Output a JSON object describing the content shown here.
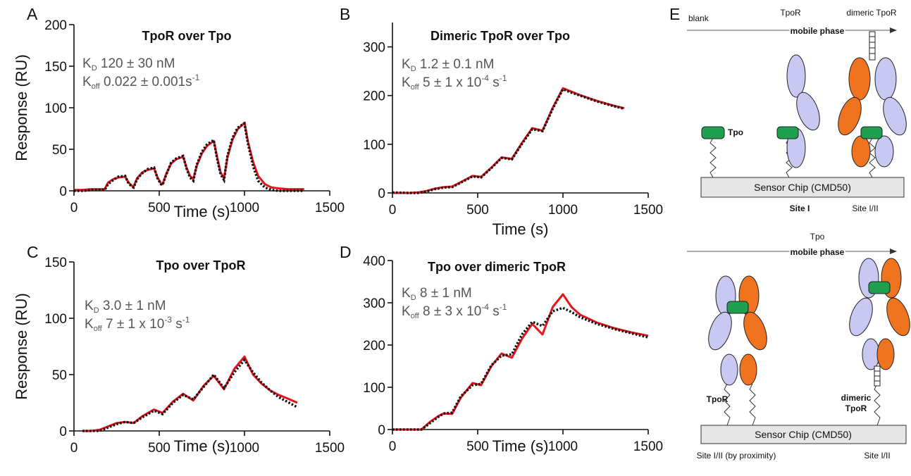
{
  "chart_data": [
    {
      "type": "line",
      "label": "A",
      "title": "TpoR over Tpo",
      "xlabel": "Time (s)",
      "ylabel": "Response (RU)",
      "annotations": [
        [
          {
            "text": "K"
          },
          {
            "sub": "D"
          },
          {
            "text": " 120 ± 30 nM"
          }
        ],
        [
          {
            "text": "K"
          },
          {
            "sub": "off"
          },
          {
            "text": " 0.022 ± 0.001s"
          },
          {
            "sup": "-1"
          }
        ]
      ],
      "x": [
        0,
        50,
        100,
        150,
        180,
        200,
        230,
        260,
        300,
        320,
        340,
        350,
        370,
        400,
        430,
        470,
        490,
        510,
        520,
        540,
        570,
        600,
        640,
        660,
        680,
        700,
        720,
        750,
        780,
        820,
        840,
        860,
        880,
        900,
        930,
        960,
        1000,
        1020,
        1050,
        1080,
        1120,
        1160,
        1200,
        1250,
        1300,
        1350
      ],
      "xlim": [
        0,
        1500
      ],
      "xticks": [
        0,
        500,
        1000,
        1500
      ],
      "ylim": [
        0,
        200
      ],
      "yticks": [
        0,
        50,
        100,
        150,
        200
      ],
      "series": [
        {
          "color": "#e8141c",
          "style": "solid",
          "values": [
            1,
            1,
            2,
            2,
            2,
            10,
            14,
            16,
            17,
            10,
            6,
            5,
            15,
            22,
            25,
            27,
            16,
            9,
            8,
            20,
            33,
            38,
            41,
            28,
            18,
            14,
            30,
            45,
            54,
            60,
            40,
            22,
            15,
            40,
            62,
            74,
            82,
            60,
            35,
            18,
            8,
            4,
            3,
            2,
            2,
            2
          ]
        },
        {
          "color": "#111111",
          "style": "dotted",
          "values": [
            0,
            0,
            1,
            1,
            1,
            8,
            13,
            17,
            18,
            9,
            5,
            4,
            14,
            21,
            26,
            28,
            15,
            8,
            7,
            19,
            34,
            39,
            42,
            27,
            16,
            12,
            31,
            47,
            56,
            61,
            38,
            20,
            13,
            42,
            64,
            76,
            81,
            57,
            30,
            12,
            4,
            1,
            0,
            0,
            0,
            0
          ]
        }
      ]
    },
    {
      "type": "line",
      "label": "B",
      "title": "Dimeric TpoR over Tpo",
      "xlabel": "Time (s)",
      "annotations": [
        [
          {
            "text": "K"
          },
          {
            "sub": "D"
          },
          {
            "text": " 1.2 ± 0.1 nM"
          }
        ],
        [
          {
            "text": "K"
          },
          {
            "sub": "off"
          },
          {
            "text": " 5 ± 1 x 10"
          },
          {
            "sup": "-4"
          },
          {
            "text": " s"
          },
          {
            "sup": "-1"
          }
        ]
      ],
      "x": [
        0,
        100,
        150,
        200,
        250,
        300,
        350,
        400,
        470,
        520,
        580,
        640,
        700,
        760,
        820,
        880,
        940,
        1000,
        1050,
        1100,
        1150,
        1200,
        1250,
        1300,
        1360
      ],
      "xlim": [
        0,
        1500
      ],
      "xticks": [
        0,
        500,
        1000,
        1500
      ],
      "ylim": [
        0,
        350
      ],
      "yticks": [
        0,
        100,
        200,
        300
      ],
      "series": [
        {
          "color": "#e8141c",
          "style": "solid",
          "values": [
            0,
            0,
            1,
            4,
            9,
            12,
            13,
            22,
            35,
            33,
            52,
            73,
            70,
            103,
            133,
            128,
            175,
            215,
            208,
            201,
            195,
            189,
            184,
            179,
            174
          ]
        },
        {
          "color": "#111111",
          "style": "dotted",
          "values": [
            1,
            0,
            0,
            3,
            8,
            11,
            12,
            21,
            34,
            32,
            51,
            72,
            69,
            101,
            131,
            127,
            173,
            213,
            206,
            200,
            194,
            188,
            183,
            178,
            173
          ]
        }
      ]
    },
    {
      "type": "line",
      "label": "C",
      "title": "Tpo over TpoR",
      "xlabel": "Time (s)",
      "ylabel": "Response (RU)",
      "annotations": [
        [
          {
            "text": "K"
          },
          {
            "sub": "D"
          },
          {
            "text": " 3.0 ± 1 nM"
          }
        ],
        [
          {
            "text": "K"
          },
          {
            "sub": "off"
          },
          {
            "text": " 7 ± 1 x 10"
          },
          {
            "sup": "-3"
          },
          {
            "text": " s"
          },
          {
            "sup": "-1"
          }
        ]
      ],
      "x": [
        50,
        100,
        150,
        200,
        250,
        300,
        350,
        400,
        470,
        520,
        580,
        640,
        700,
        760,
        820,
        880,
        940,
        1000,
        1050,
        1100,
        1150,
        1200,
        1250,
        1310
      ],
      "xlim": [
        0,
        1500
      ],
      "xticks": [
        0,
        500,
        1000,
        1500
      ],
      "ylim": [
        0,
        150
      ],
      "yticks": [
        0,
        50,
        100,
        150
      ],
      "series": [
        {
          "color": "#e8141c",
          "style": "solid",
          "values": [
            0,
            0,
            1,
            4,
            7,
            8,
            7,
            13,
            19,
            16,
            26,
            33,
            27,
            40,
            49,
            37,
            55,
            66,
            50,
            42,
            36,
            32,
            29,
            25
          ]
        },
        {
          "color": "#111111",
          "style": "dotted",
          "values": [
            0,
            0,
            0,
            3,
            6,
            8,
            7,
            12,
            18,
            15,
            25,
            32,
            28,
            39,
            50,
            38,
            52,
            63,
            52,
            43,
            36,
            30,
            26,
            21
          ]
        }
      ]
    },
    {
      "type": "line",
      "label": "D",
      "title": "Tpo over dimeric TpoR",
      "xlabel": "Time (s)",
      "annotations": [
        [
          {
            "text": "K"
          },
          {
            "sub": "D"
          },
          {
            "text": " 8 ± 1 nM"
          }
        ],
        [
          {
            "text": "K"
          },
          {
            "sub": "off"
          },
          {
            "text": " 8 ± 3 x 10"
          },
          {
            "sup": "-4"
          },
          {
            "text": " s"
          },
          {
            "sup": "-1"
          }
        ]
      ],
      "x": [
        0,
        100,
        170,
        220,
        270,
        300,
        350,
        400,
        470,
        520,
        580,
        640,
        700,
        760,
        820,
        880,
        940,
        1000,
        1050,
        1100,
        1200,
        1300,
        1400,
        1500
      ],
      "xlim": [
        0,
        1500
      ],
      "xticks": [
        0,
        500,
        1000,
        1500
      ],
      "ylim": [
        0,
        400
      ],
      "yticks": [
        0,
        100,
        200,
        300,
        400
      ],
      "series": [
        {
          "color": "#e8141c",
          "style": "solid",
          "values": [
            0,
            0,
            0,
            18,
            32,
            38,
            37,
            75,
            110,
            105,
            150,
            180,
            170,
            215,
            250,
            225,
            290,
            320,
            290,
            272,
            253,
            240,
            230,
            222
          ]
        },
        {
          "color": "#111111",
          "style": "dotted",
          "values": [
            0,
            0,
            0,
            15,
            30,
            38,
            40,
            78,
            105,
            108,
            152,
            175,
            178,
            225,
            255,
            245,
            280,
            288,
            278,
            266,
            250,
            238,
            228,
            218
          ]
        }
      ]
    }
  ],
  "diagram": {
    "label": "E",
    "top": {
      "blank": "blank",
      "tpor": "TpoR",
      "dimeric": "dimeric TpoR",
      "phase": "mobile phase",
      "tpo": "Tpo",
      "chip": "Sensor Chip (CMD50)",
      "site1": "Site I",
      "site2": "Site I/II"
    },
    "bottom": {
      "tpo": "Tpo",
      "phase": "mobile phase",
      "tpor": "TpoR",
      "dimeric": [
        "dimeric",
        "TpoR"
      ],
      "chip": "Sensor Chip (CMD50)",
      "site1": "Site I/II (by proximity)",
      "site2": "Site I/II"
    }
  }
}
